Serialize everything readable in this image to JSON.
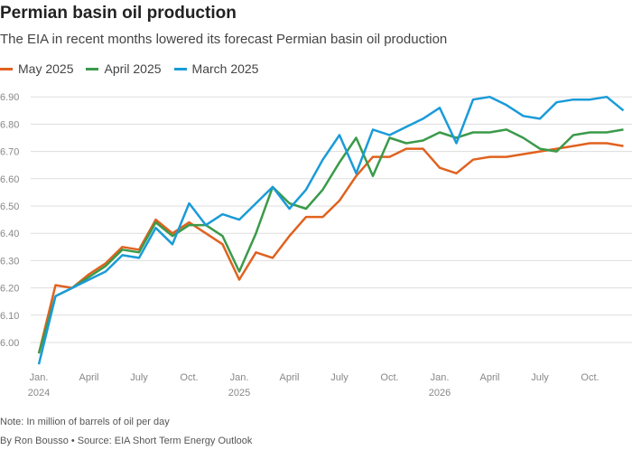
{
  "title": "Permian basin oil production",
  "subtitle": "The EIA in recent months lowered its forecast Permian basin oil production",
  "note": "Note: In million of barrels of oil per day",
  "byline": "By Ron Bousso • Source: EIA Short Term Energy Outlook",
  "chart_data": {
    "type": "line",
    "x_start": "2024-01",
    "x_end": "2026-12",
    "x_frequency": "monthly",
    "x_ticks": [
      {
        "label": "Jan.",
        "year": "2024",
        "index": 0
      },
      {
        "label": "April",
        "index": 3
      },
      {
        "label": "July",
        "index": 6
      },
      {
        "label": "Oct.",
        "index": 9
      },
      {
        "label": "Jan.",
        "year": "2025",
        "index": 12
      },
      {
        "label": "April",
        "index": 15
      },
      {
        "label": "July",
        "index": 18
      },
      {
        "label": "Oct.",
        "index": 21
      },
      {
        "label": "Jan.",
        "year": "2026",
        "index": 24
      },
      {
        "label": "April",
        "index": 27
      },
      {
        "label": "July",
        "index": 30
      },
      {
        "label": "Oct.",
        "index": 33
      }
    ],
    "y_ticks": [
      "6.00",
      "6.10",
      "6.20",
      "6.30",
      "6.40",
      "6.50",
      "6.60",
      "6.70",
      "6.80",
      "6.90"
    ],
    "ylim": [
      5.9,
      6.95
    ],
    "grid": true,
    "legend_position": "top-left",
    "series": [
      {
        "name": "May 2025",
        "color": "#e0621f",
        "values": [
          5.96,
          6.21,
          6.2,
          6.25,
          6.29,
          6.35,
          6.34,
          6.45,
          6.4,
          6.44,
          6.4,
          6.36,
          6.23,
          6.33,
          6.31,
          6.39,
          6.46,
          6.46,
          6.52,
          6.61,
          6.68,
          6.68,
          6.71,
          6.71,
          6.64,
          6.62,
          6.67,
          6.68,
          6.68,
          6.69,
          6.7,
          6.71,
          6.72,
          6.73,
          6.73,
          6.72
        ]
      },
      {
        "name": "April 2025",
        "color": "#3b9a4a",
        "values": [
          5.96,
          6.17,
          6.2,
          6.24,
          6.28,
          6.34,
          6.33,
          6.44,
          6.39,
          6.43,
          6.43,
          6.39,
          6.26,
          6.4,
          6.57,
          6.51,
          6.49,
          6.56,
          6.66,
          6.75,
          6.61,
          6.75,
          6.73,
          6.74,
          6.77,
          6.75,
          6.77,
          6.77,
          6.78,
          6.75,
          6.71,
          6.7,
          6.76,
          6.77,
          6.77,
          6.78
        ]
      },
      {
        "name": "March 2025",
        "color": "#1a9bd8",
        "values": [
          5.92,
          6.17,
          6.2,
          6.23,
          6.26,
          6.32,
          6.31,
          6.42,
          6.36,
          6.51,
          6.43,
          6.47,
          6.45,
          6.51,
          6.57,
          6.49,
          6.56,
          6.67,
          6.76,
          6.62,
          6.78,
          6.76,
          6.79,
          6.82,
          6.86,
          6.73,
          6.89,
          6.9,
          6.87,
          6.83,
          6.82,
          6.88,
          6.89,
          6.89,
          6.9,
          6.85
        ]
      }
    ]
  }
}
